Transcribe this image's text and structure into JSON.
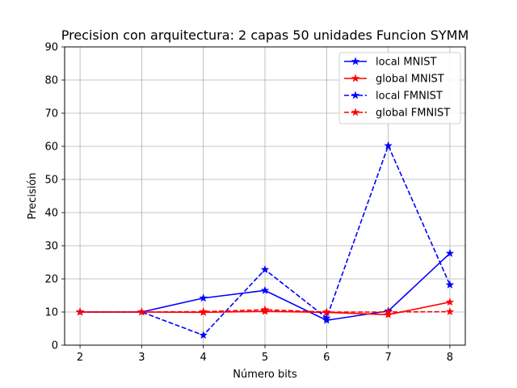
{
  "chart_data": {
    "type": "line",
    "title": "Precision con arquitectura: 2 capas 50 unidades Funcion SYMM",
    "xlabel": "Número bits",
    "ylabel": "Precisión",
    "x": [
      2,
      3,
      4,
      5,
      6,
      7,
      8
    ],
    "xlim": [
      1.75,
      8.25
    ],
    "ylim": [
      0,
      90
    ],
    "xticks": [
      "2",
      "3",
      "4",
      "5",
      "6",
      "7",
      "8"
    ],
    "yticks": [
      "0",
      "10",
      "20",
      "30",
      "40",
      "50",
      "60",
      "70",
      "80",
      "90"
    ],
    "grid": true,
    "legend_position": "top-right",
    "series": [
      {
        "name": "local MNIST",
        "color": "#0000ff",
        "linestyle": "solid",
        "marker": "star",
        "values": [
          10.0,
          10.0,
          14.2,
          16.5,
          7.5,
          10.3,
          27.7
        ]
      },
      {
        "name": "global MNIST",
        "color": "#ff0000",
        "linestyle": "solid",
        "marker": "star",
        "values": [
          10.0,
          10.0,
          9.9,
          10.2,
          9.9,
          9.2,
          13.0
        ]
      },
      {
        "name": "local FMNIST",
        "color": "#0000ff",
        "linestyle": "dashed",
        "marker": "star",
        "values": [
          10.0,
          10.0,
          3.0,
          22.8,
          8.2,
          60.2,
          18.2
        ]
      },
      {
        "name": "global FMNIST",
        "color": "#ff0000",
        "linestyle": "dashed",
        "marker": "star",
        "values": [
          10.0,
          10.0,
          10.1,
          10.7,
          10.0,
          10.0,
          10.1
        ]
      }
    ]
  }
}
